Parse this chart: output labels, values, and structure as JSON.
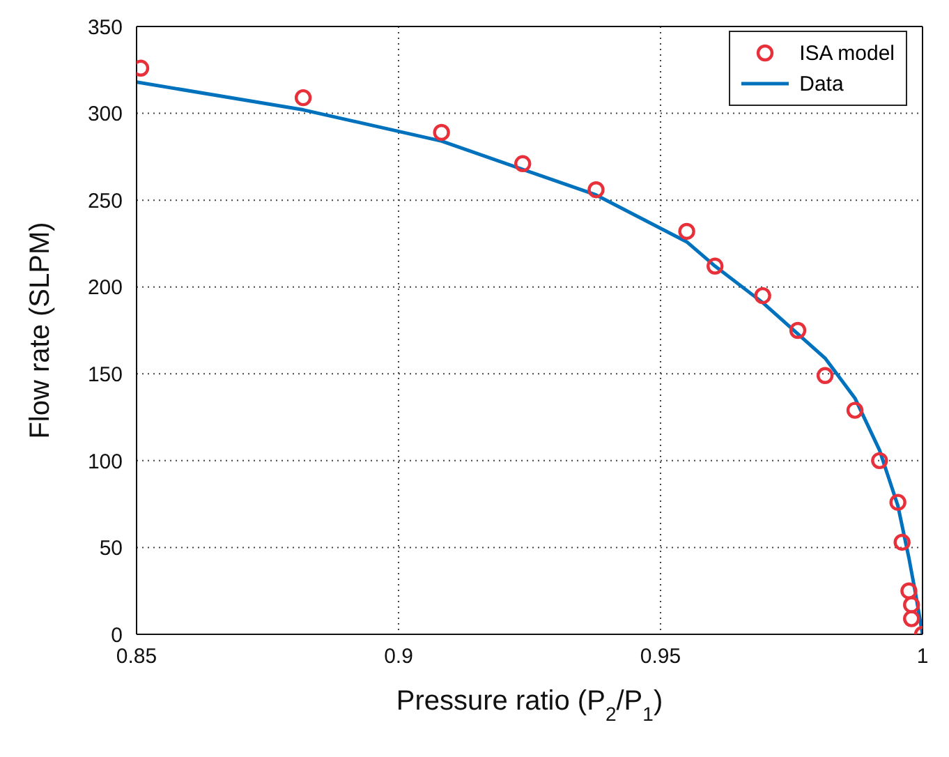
{
  "chart_data": {
    "type": "scatter",
    "xlabel": "Pressure ratio (P$_{2}$/P$_{1}$)",
    "ylabel": "Flow rate (SLPM)",
    "xlim": [
      0.85,
      1
    ],
    "xticks": [
      0.85,
      0.9,
      0.95,
      1
    ],
    "ylim": [
      0,
      350
    ],
    "yticks": [
      0,
      50,
      100,
      150,
      200,
      250,
      300,
      350
    ],
    "grid": true,
    "legend": "top right",
    "series": [
      {
        "name": "ISA model",
        "marker": "circle",
        "color": "#e8303a",
        "x": [
          0.8508,
          0.8818,
          0.9082,
          0.9237,
          0.9377,
          0.955,
          0.9604,
          0.9695,
          0.9762,
          0.9814,
          0.9871,
          0.9918,
          0.9953,
          0.9961,
          0.9974,
          0.9979,
          0.9979,
          1.0
        ],
        "values": [
          326,
          309,
          289,
          271,
          256,
          232,
          212,
          195,
          175,
          149,
          129,
          100,
          76,
          53,
          25,
          17,
          9,
          0
        ]
      },
      {
        "name": "Data",
        "type": "line",
        "marker": "none",
        "line_style": "solid",
        "color": "#0072bd",
        "x": [
          0.85,
          0.8818,
          0.9082,
          0.9377,
          0.955,
          0.9604,
          0.9695,
          0.9814,
          0.9871,
          0.9918,
          0.9953,
          0.9974,
          0.9987,
          1.0
        ],
        "values": [
          318,
          302,
          284,
          253,
          226,
          212,
          191,
          159,
          136,
          106,
          74,
          44,
          23,
          0
        ]
      }
    ]
  }
}
